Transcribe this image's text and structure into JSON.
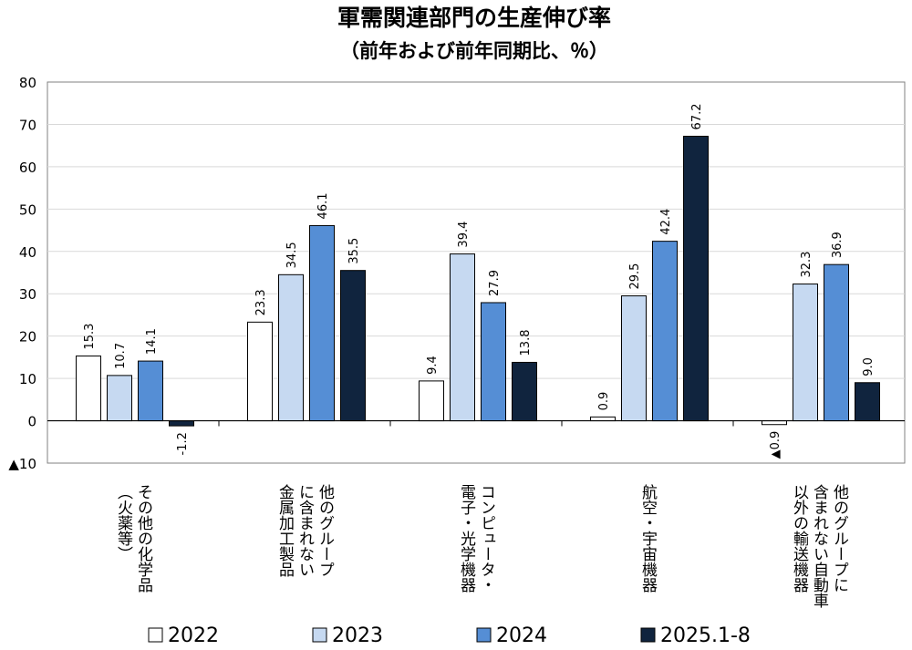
{
  "chart_data": {
    "type": "bar",
    "title": "軍需関連部門の生産伸び率",
    "subtitle": "（前年および前年同期比、％）",
    "categories": [
      [
        "その他の化学品",
        "（火薬等）"
      ],
      [
        "他のグループ",
        "に含まれない",
        "金属加工製品"
      ],
      [
        "コンピュータ・",
        "電子・光学機器"
      ],
      [
        "航空・宇宙機器"
      ],
      [
        "他のグループに",
        "含まれない自動車",
        "以外の輸送機器"
      ]
    ],
    "series": [
      {
        "name": "2022",
        "color": "#ffffff",
        "values": [
          15.3,
          23.3,
          9.4,
          0.9,
          -0.9
        ]
      },
      {
        "name": "2023",
        "color": "#c6d9f1",
        "values": [
          10.7,
          34.5,
          39.4,
          29.5,
          32.3
        ]
      },
      {
        "name": "2024",
        "color": "#558ed5",
        "values": [
          14.1,
          46.1,
          27.9,
          42.4,
          36.9
        ]
      },
      {
        "name": "2025.1-8",
        "color": "#10243e",
        "values": [
          -1.2,
          35.5,
          13.8,
          67.2,
          9.0
        ]
      }
    ],
    "data_labels": [
      [
        "15.3",
        "23.3",
        "9.4",
        "0.9",
        "▲0.9"
      ],
      [
        "10.7",
        "34.5",
        "39.4",
        "29.5",
        "32.3"
      ],
      [
        "14.1",
        "46.1",
        "27.9",
        "42.4",
        "36.9"
      ],
      [
        "-1.2",
        "35.5",
        "13.8",
        "67.2",
        "9.0"
      ]
    ],
    "y_ticks": [
      80,
      70,
      60,
      50,
      40,
      30,
      20,
      10,
      0,
      -10
    ],
    "y_tick_labels": [
      "80",
      "70",
      "60",
      "50",
      "40",
      "30",
      "20",
      "10",
      "0",
      "▲10"
    ],
    "ylim": [
      -10,
      80
    ],
    "grid": true,
    "legend": "bottom"
  }
}
